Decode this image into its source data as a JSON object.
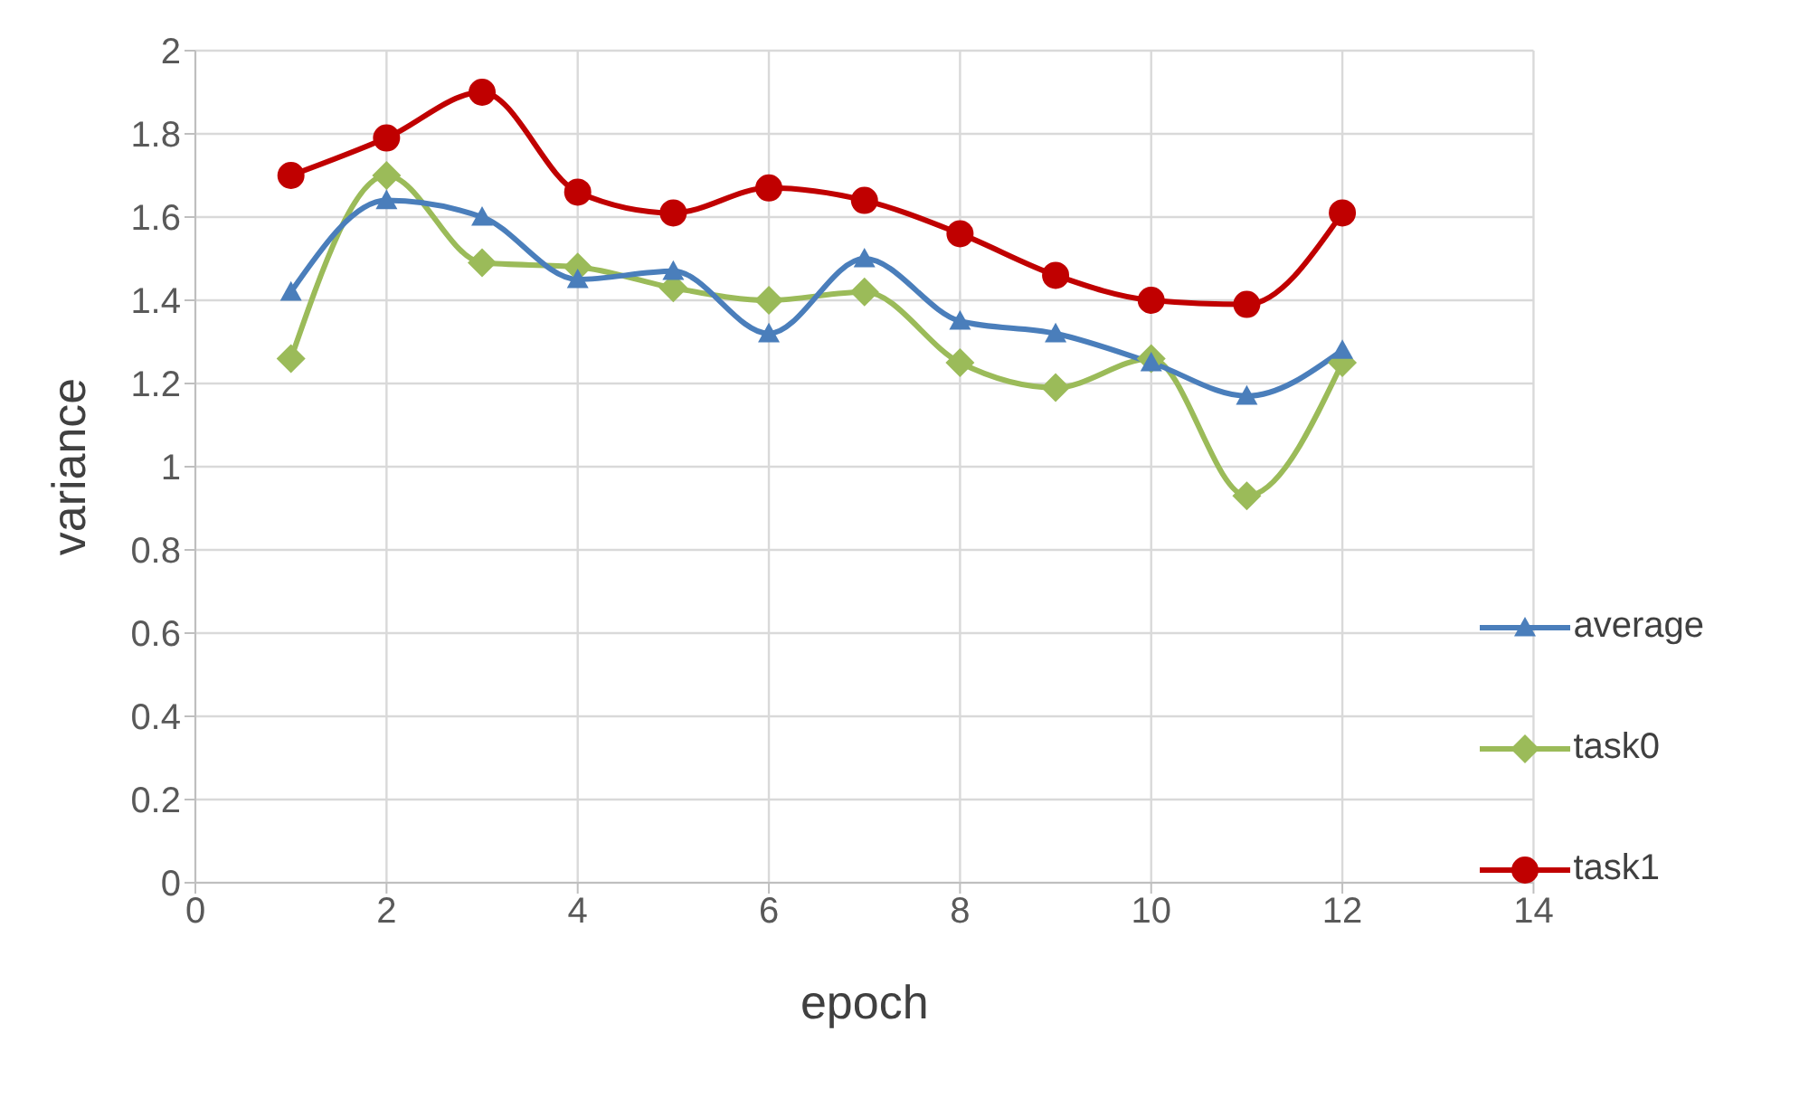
{
  "chart_data": {
    "type": "line",
    "xlabel": "epoch",
    "ylabel": "variance",
    "x": [
      1,
      2,
      3,
      4,
      5,
      6,
      7,
      8,
      9,
      10,
      11,
      12
    ],
    "series": [
      {
        "name": "average",
        "color": "#4a7ebb",
        "marker": "triangle",
        "values": [
          1.42,
          1.64,
          1.6,
          1.45,
          1.47,
          1.32,
          1.5,
          1.35,
          1.32,
          1.25,
          1.17,
          1.28
        ]
      },
      {
        "name": "task0",
        "color": "#9bbb59",
        "marker": "diamond",
        "values": [
          1.26,
          1.7,
          1.49,
          1.48,
          1.43,
          1.4,
          1.42,
          1.25,
          1.19,
          1.26,
          0.93,
          1.25
        ]
      },
      {
        "name": "task1",
        "color": "#c00000",
        "marker": "circle",
        "values": [
          1.7,
          1.79,
          1.9,
          1.66,
          1.61,
          1.67,
          1.64,
          1.56,
          1.46,
          1.4,
          1.39,
          1.61
        ]
      }
    ],
    "xlim": [
      0,
      14
    ],
    "xticks": [
      0,
      2,
      4,
      6,
      8,
      10,
      12,
      14
    ],
    "ylim": [
      0,
      2
    ],
    "yticks": [
      0,
      0.2,
      0.4,
      0.6,
      0.8,
      1,
      1.2,
      1.4,
      1.6,
      1.8,
      2
    ],
    "grid": true,
    "legend": "right"
  }
}
